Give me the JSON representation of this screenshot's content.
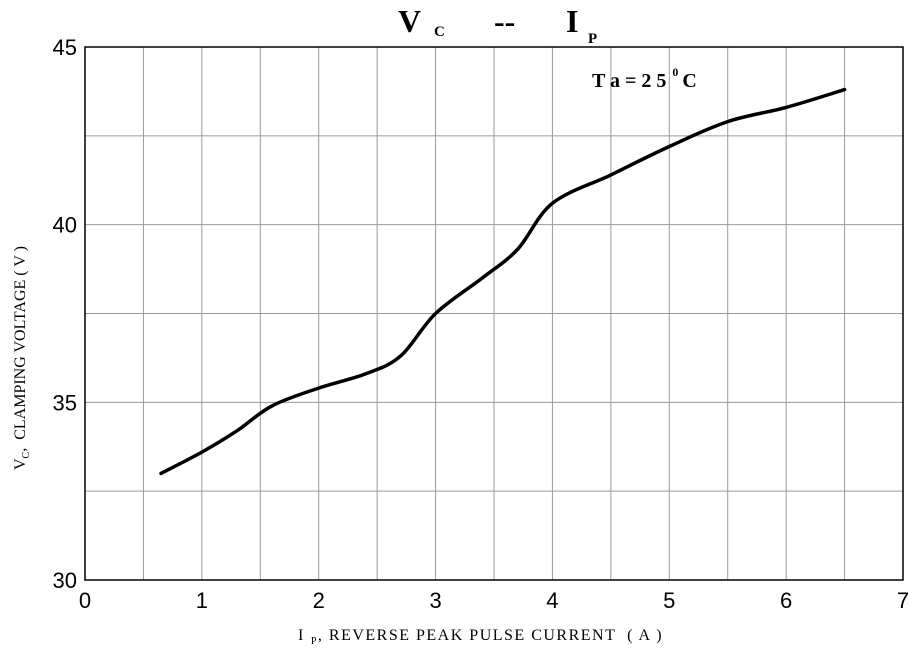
{
  "chart_data": {
    "type": "line",
    "title": {
      "main1": "V",
      "sub1": "C",
      "sep": "--",
      "main2": "I",
      "sub2": "P"
    },
    "annotation": {
      "base": "T a = 2 5",
      "sup": "0",
      "tail": "C"
    },
    "xlabel": {
      "main": "I",
      "sub": "P",
      "rest": ", REVERSE PEAK PULSE CURRENT  ( A )"
    },
    "ylabel": {
      "main": "V",
      "sub": "C",
      "rest": ",  CLAMPING VOLTAGE ( V )"
    },
    "xlim": [
      0,
      7
    ],
    "ylim": [
      30,
      45
    ],
    "x_ticks": [
      0,
      1,
      2,
      3,
      4,
      5,
      6,
      7
    ],
    "y_ticks": [
      30,
      35,
      40,
      45
    ],
    "x_grid_step": 0.5,
    "y_grid_step": 2.5,
    "grid": true,
    "line_color": "#000000",
    "series": [
      {
        "x": [
          0.65,
          1.0,
          1.3,
          1.6,
          2.0,
          2.4,
          2.7,
          3.0,
          3.4,
          3.7,
          4.0,
          4.5,
          5.0,
          5.5,
          6.0,
          6.5
        ],
        "y": [
          33.0,
          33.6,
          34.2,
          34.9,
          35.4,
          35.8,
          36.3,
          37.5,
          38.5,
          39.3,
          40.6,
          41.4,
          42.2,
          42.9,
          43.3,
          43.8
        ]
      }
    ]
  }
}
